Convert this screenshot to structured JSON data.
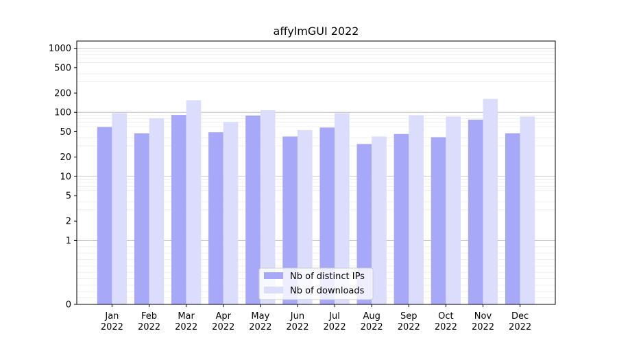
{
  "chart_data": {
    "type": "bar",
    "title": "affylmGUI 2022",
    "xlabel": "",
    "ylabel": "",
    "y_scale": "symlog",
    "ylim": [
      0,
      1300
    ],
    "grid": true,
    "legend_position": "bottom-center",
    "colors": {
      "ips": "#a8a8f8",
      "downloads": "#dcdcfc"
    },
    "categories": [
      [
        "Jan",
        "2022"
      ],
      [
        "Feb",
        "2022"
      ],
      [
        "Mar",
        "2022"
      ],
      [
        "Apr",
        "2022"
      ],
      [
        "May",
        "2022"
      ],
      [
        "Jun",
        "2022"
      ],
      [
        "Jul",
        "2022"
      ],
      [
        "Aug",
        "2022"
      ],
      [
        "Sep",
        "2022"
      ],
      [
        "Oct",
        "2022"
      ],
      [
        "Nov",
        "2022"
      ],
      [
        "Dec",
        "2022"
      ]
    ],
    "y_ticks": [
      {
        "value": 0,
        "label": "0"
      },
      {
        "value": 1,
        "label": "1"
      },
      {
        "value": 2,
        "label": "2"
      },
      {
        "value": 5,
        "label": "5"
      },
      {
        "value": 10,
        "label": "10"
      },
      {
        "value": 20,
        "label": "20"
      },
      {
        "value": 50,
        "label": "50"
      },
      {
        "value": 100,
        "label": "100"
      },
      {
        "value": 200,
        "label": "200"
      },
      {
        "value": 500,
        "label": "500"
      },
      {
        "value": 1000,
        "label": "1000"
      }
    ],
    "series": [
      {
        "name": "Nb of distinct IPs",
        "values": [
          59,
          47,
          91,
          49,
          89,
          42,
          58,
          32,
          46,
          41,
          77,
          47
        ]
      },
      {
        "name": "Nb of downloads",
        "values": [
          97,
          81,
          155,
          71,
          108,
          53,
          97,
          42,
          90,
          86,
          162,
          86
        ]
      }
    ]
  }
}
